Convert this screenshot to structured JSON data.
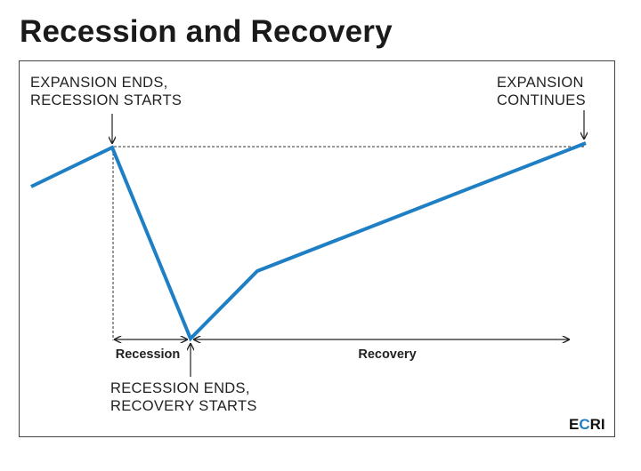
{
  "title": "Recession and Recovery",
  "callouts": {
    "expansion_ends": [
      "EXPANSION ENDS,",
      "RECESSION STARTS"
    ],
    "expansion_continues": [
      "EXPANSION",
      "CONTINUES"
    ],
    "recession_ends": [
      "RECESSION ENDS,",
      "RECOVERY STARTS"
    ]
  },
  "phases": {
    "recession": "Recession",
    "recovery": "Recovery"
  },
  "logo": {
    "text": "ECRI",
    "before_accent": "E",
    "accent": "C",
    "after_accent": "RI",
    "accent_color": "#1f7fc4"
  },
  "colors": {
    "line": "#1f7fc4",
    "text": "#222222"
  }
}
